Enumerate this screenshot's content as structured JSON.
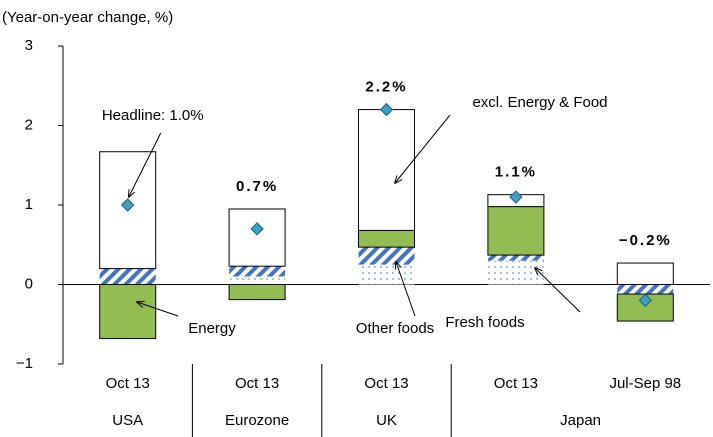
{
  "chart_data": {
    "type": "bar",
    "stacked": true,
    "y_label": "(Year-on-year change, %)",
    "categories": [
      "Oct 13",
      "Oct 13",
      "Oct 13",
      "Oct 13",
      "Jul-Sep 98"
    ],
    "groups": [
      "USA",
      "Eurozone",
      "UK",
      "Japan"
    ],
    "series": [
      {
        "name": "Fresh foods",
        "color": "#9dc3e6",
        "pattern": "dots",
        "values": [
          0,
          0.1,
          0.25,
          0.3,
          0
        ]
      },
      {
        "name": "Other foods",
        "color": "#4472c4",
        "pattern": "hatch",
        "values": [
          0.2,
          0.13,
          0.22,
          0.07,
          -0.12
        ]
      },
      {
        "name": "Energy",
        "color": "#92bd52",
        "values": [
          -0.68,
          -0.19,
          0.21,
          0.61,
          -0.34
        ]
      },
      {
        "name": "excl. Energy & Food",
        "color": "#ffffff",
        "values": [
          1.47,
          0.72,
          1.52,
          0.15,
          0.27
        ]
      }
    ],
    "headline": {
      "color": "#3ca0c0",
      "values": [
        1.0,
        0.7,
        2.2,
        1.1,
        -0.2
      ],
      "value_labels": [
        "Headline: 1.0%",
        "0.7%",
        "2.2%",
        "1.1%",
        "−0.2%"
      ]
    },
    "ylim": [
      -1,
      3
    ],
    "yticks": [
      {
        "value": -1,
        "label": "−1"
      },
      0,
      1,
      2,
      3
    ]
  }
}
